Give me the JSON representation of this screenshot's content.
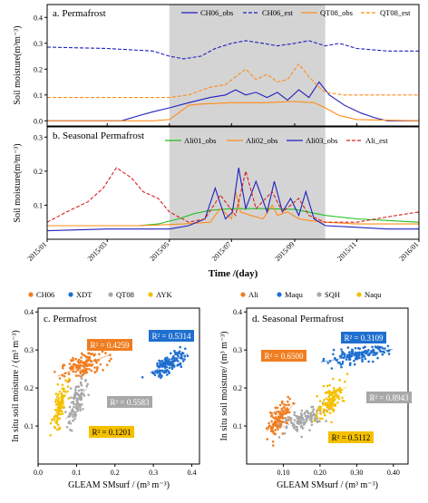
{
  "chart_data": [
    {
      "type": "line",
      "panel": "a. Permafrost",
      "x_ticks": [
        "2015/01",
        "2015/03",
        "2015/05",
        "2015/07",
        "2015/09",
        "2015/11",
        "2016/01"
      ],
      "xlim": [
        "2015-01-01",
        "2016-01-01"
      ],
      "ylabel": "Soil moisture(m³m⁻³)",
      "ylim": [
        -0.02,
        0.45
      ],
      "y_ticks": [
        "0.0",
        "0.1",
        "0.2",
        "0.3",
        "0.4"
      ],
      "shaded_period": [
        "2015-05-01",
        "2015-10-01"
      ],
      "series": [
        {
          "name": "CH06_obs",
          "color": "#1f1fbf",
          "style": "solid",
          "x": [
            "2015-01-01",
            "2015-02-15",
            "2015-03-15",
            "2015-04-01",
            "2015-04-15",
            "2015-05-01",
            "2015-05-20",
            "2015-06-10",
            "2015-06-25",
            "2015-07-05",
            "2015-07-15",
            "2015-07-25",
            "2015-08-05",
            "2015-08-15",
            "2015-08-25",
            "2015-09-05",
            "2015-09-15",
            "2015-09-25",
            "2015-10-05",
            "2015-10-20",
            "2015-11-05",
            "2015-11-20",
            "2015-12-01",
            "2016-01-01"
          ],
          "y": [
            0.0,
            0.0,
            0.0,
            0.02,
            0.035,
            0.05,
            0.07,
            0.09,
            0.1,
            0.12,
            0.1,
            0.11,
            0.09,
            0.11,
            0.08,
            0.12,
            0.09,
            0.15,
            0.1,
            0.06,
            0.03,
            0.01,
            0.0,
            0.0
          ]
        },
        {
          "name": "CH06_est",
          "color": "#1f1fbf",
          "style": "dashed",
          "x": [
            "2015-01-01",
            "2015-03-01",
            "2015-04-15",
            "2015-05-01",
            "2015-05-15",
            "2015-06-01",
            "2015-06-15",
            "2015-07-01",
            "2015-07-15",
            "2015-08-01",
            "2015-08-15",
            "2015-09-01",
            "2015-09-15",
            "2015-10-01",
            "2015-10-15",
            "2015-11-01",
            "2015-12-01",
            "2016-01-01"
          ],
          "y": [
            0.285,
            0.28,
            0.27,
            0.25,
            0.24,
            0.25,
            0.28,
            0.3,
            0.31,
            0.3,
            0.29,
            0.3,
            0.31,
            0.29,
            0.3,
            0.28,
            0.27,
            0.27
          ]
        },
        {
          "name": "QT08_obs",
          "color": "#ff8c1a",
          "style": "solid",
          "x": [
            "2015-01-01",
            "2015-04-15",
            "2015-05-01",
            "2015-05-10",
            "2015-05-20",
            "2015-06-01",
            "2015-07-01",
            "2015-08-01",
            "2015-09-01",
            "2015-09-20",
            "2015-10-01",
            "2015-10-15",
            "2015-11-01",
            "2016-01-01"
          ],
          "y": [
            0.0,
            0.0,
            0.005,
            0.03,
            0.06,
            0.065,
            0.07,
            0.07,
            0.075,
            0.07,
            0.05,
            0.02,
            0.005,
            0.0
          ]
        },
        {
          "name": "QT08_est",
          "color": "#ff8c1a",
          "style": "dashed",
          "x": [
            "2015-01-01",
            "2015-04-15",
            "2015-05-01",
            "2015-05-20",
            "2015-06-10",
            "2015-06-25",
            "2015-07-05",
            "2015-07-15",
            "2015-07-25",
            "2015-08-05",
            "2015-08-15",
            "2015-08-25",
            "2015-09-05",
            "2015-09-15",
            "2015-09-25",
            "2015-10-01",
            "2015-10-20",
            "2016-01-01"
          ],
          "y": [
            0.09,
            0.09,
            0.09,
            0.1,
            0.13,
            0.14,
            0.17,
            0.2,
            0.16,
            0.18,
            0.15,
            0.16,
            0.22,
            0.17,
            0.13,
            0.11,
            0.1,
            0.1
          ]
        }
      ]
    },
    {
      "type": "line",
      "panel": "b. Seasonal Permafrost",
      "x_ticks": [
        "2015/01",
        "2015/03",
        "2015/05",
        "2015/07",
        "2015/09",
        "2015/11",
        "2016/01"
      ],
      "xlim": [
        "2015-01-01",
        "2016-01-01"
      ],
      "xlabel": "Time /(day)",
      "ylabel": "Soil moisture(m³m⁻³)",
      "ylim": [
        0.0,
        0.33
      ],
      "y_ticks": [
        "0.1",
        "0.2",
        "0.3"
      ],
      "shaded_period": [
        "2015-05-01",
        "2015-10-01"
      ],
      "series": [
        {
          "name": "Ali01_obs",
          "color": "#22c022",
          "style": "solid",
          "x": [
            "2015-01-01",
            "2015-04-01",
            "2015-04-20",
            "2015-05-10",
            "2015-05-25",
            "2015-06-10",
            "2015-07-01",
            "2015-08-01",
            "2015-09-01",
            "2015-10-01",
            "2015-11-01",
            "2015-12-01",
            "2016-01-01"
          ],
          "y": [
            0.04,
            0.04,
            0.045,
            0.06,
            0.075,
            0.085,
            0.09,
            0.09,
            0.088,
            0.07,
            0.06,
            0.055,
            0.05
          ]
        },
        {
          "name": "Ali02_obs",
          "color": "#ff8c1a",
          "style": "solid",
          "x": [
            "2015-01-01",
            "2015-04-01",
            "2015-05-15",
            "2015-06-10",
            "2015-06-20",
            "2015-07-01",
            "2015-07-05",
            "2015-07-10",
            "2015-07-20",
            "2015-08-01",
            "2015-08-10",
            "2015-08-15",
            "2015-08-25",
            "2015-09-05",
            "2015-09-15",
            "2015-10-01",
            "2015-11-01",
            "2016-01-01"
          ],
          "y": [
            0.04,
            0.04,
            0.045,
            0.05,
            0.09,
            0.06,
            0.14,
            0.08,
            0.07,
            0.06,
            0.1,
            0.07,
            0.08,
            0.06,
            0.055,
            0.05,
            0.045,
            0.045
          ]
        },
        {
          "name": "Ali03_obs",
          "color": "#1f1fbf",
          "style": "solid",
          "x": [
            "2015-01-01",
            "2015-03-01",
            "2015-04-01",
            "2015-05-01",
            "2015-05-20",
            "2015-06-05",
            "2015-06-15",
            "2015-06-25",
            "2015-07-02",
            "2015-07-08",
            "2015-07-15",
            "2015-07-25",
            "2015-08-05",
            "2015-08-12",
            "2015-08-20",
            "2015-08-28",
            "2015-09-05",
            "2015-09-12",
            "2015-09-20",
            "2015-10-01",
            "2015-11-01",
            "2015-12-01",
            "2016-01-01"
          ],
          "y": [
            0.025,
            0.03,
            0.03,
            0.03,
            0.04,
            0.06,
            0.15,
            0.06,
            0.08,
            0.21,
            0.09,
            0.17,
            0.08,
            0.17,
            0.08,
            0.12,
            0.07,
            0.14,
            0.06,
            0.04,
            0.035,
            0.03,
            0.03
          ]
        },
        {
          "name": "Ali_est",
          "color": "#d62020",
          "style": "dashed",
          "x": [
            "2015-01-01",
            "2015-01-20",
            "2015-02-10",
            "2015-02-25",
            "2015-03-10",
            "2015-03-25",
            "2015-04-05",
            "2015-04-20",
            "2015-05-01",
            "2015-05-20",
            "2015-06-05",
            "2015-06-20",
            "2015-07-05",
            "2015-07-15",
            "2015-07-25",
            "2015-08-10",
            "2015-08-20",
            "2015-09-05",
            "2015-09-15",
            "2015-10-01",
            "2015-11-01",
            "2015-11-20",
            "2015-12-10",
            "2016-01-01"
          ],
          "y": [
            0.05,
            0.08,
            0.11,
            0.15,
            0.21,
            0.18,
            0.14,
            0.12,
            0.08,
            0.05,
            0.06,
            0.13,
            0.07,
            0.2,
            0.09,
            0.14,
            0.08,
            0.12,
            0.07,
            0.05,
            0.05,
            0.06,
            0.07,
            0.08
          ]
        }
      ]
    },
    {
      "type": "scatter",
      "panel": "c. Permafrost",
      "xlabel": "GLEAM SMsurf / (m³ m⁻³)",
      "ylabel": "In situ soil moisture / (m³ m⁻³)",
      "xlim": [
        0.0,
        0.42
      ],
      "ylim": [
        0.0,
        0.41
      ],
      "x_ticks": [
        "0.0",
        "0.1",
        "0.2",
        "0.3",
        "0.4"
      ],
      "y_ticks": [
        "0.1",
        "0.2",
        "0.3",
        "0.4"
      ],
      "series": [
        {
          "name": "CH06",
          "color": "#f07d20",
          "r2": "R² = 0.4259",
          "center": [
            0.12,
            0.26
          ],
          "spread": [
            0.05,
            0.035
          ],
          "n": 130
        },
        {
          "name": "XDT",
          "color": "#1f6fd0",
          "r2": "R² = 0.5314",
          "center": [
            0.34,
            0.265
          ],
          "spread": [
            0.035,
            0.03
          ],
          "n": 130
        },
        {
          "name": "QT08",
          "color": "#a8a8a8",
          "r2": "R² = 0.5583",
          "center": [
            0.1,
            0.16
          ],
          "spread": [
            0.02,
            0.05
          ],
          "n": 110
        },
        {
          "name": "AYK",
          "color": "#f5c000",
          "r2": "R² = 0.1201",
          "center": [
            0.055,
            0.15
          ],
          "spread": [
            0.015,
            0.05
          ],
          "n": 110
        }
      ]
    },
    {
      "type": "scatter",
      "panel": "d. Seasonal Permafrost",
      "xlabel": "GLEAM SMsurf / (m³ m⁻³)",
      "ylabel": "In situ soil moisture/ (m³ m⁻³)",
      "xlim": [
        0.0,
        0.44
      ],
      "ylim": [
        0.0,
        0.41
      ],
      "x_ticks": [
        "0.10",
        "0.20",
        "0.30",
        "0.40"
      ],
      "y_ticks": [
        "0.1",
        "0.2",
        "0.3",
        "0.4"
      ],
      "series": [
        {
          "name": "Ali",
          "color": "#f07d20",
          "r2": "R² = 0.6500",
          "center": [
            0.09,
            0.12
          ],
          "spread": [
            0.025,
            0.04
          ],
          "n": 120
        },
        {
          "name": "Maqu",
          "color": "#1f6fd0",
          "r2": "R² = 0.3109",
          "center": [
            0.3,
            0.285
          ],
          "spread": [
            0.07,
            0.02
          ],
          "n": 150
        },
        {
          "name": "SQH",
          "color": "#a8a8a8",
          "r2": "R² = 0.8943",
          "center": [
            0.16,
            0.12
          ],
          "spread": [
            0.05,
            0.03
          ],
          "n": 120
        },
        {
          "name": "Naqu",
          "color": "#f5c000",
          "r2": "R² = 0.5112",
          "center": [
            0.23,
            0.17
          ],
          "spread": [
            0.03,
            0.04
          ],
          "n": 130
        }
      ]
    }
  ]
}
